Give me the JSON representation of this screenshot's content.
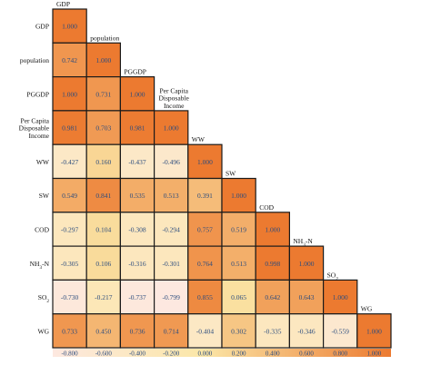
{
  "chart_data": {
    "type": "heatmap",
    "variables": [
      "GDP",
      "population",
      "PGGDP",
      "Per Capita Disposable Income",
      "WW",
      "SW",
      "COD",
      "NH3-N",
      "SO2",
      "WG"
    ],
    "row_labels": [
      "GDP",
      "population",
      "PGGDP",
      "Per Capita\nDisposable\nIncome",
      "WW",
      "SW",
      "COD",
      "NH3-N",
      "SO2",
      "WG"
    ],
    "column_labels": [
      "GDP",
      "population",
      "PGGDP",
      "Per Capita\nDisposable\nIncome",
      "WW",
      "SW",
      "COD",
      "NH3-N",
      "SO2",
      "WG"
    ],
    "matrix": [
      [
        1.0
      ],
      [
        0.742,
        1.0
      ],
      [
        1.0,
        0.731,
        1.0
      ],
      [
        0.981,
        0.703,
        0.981,
        1.0
      ],
      [
        -0.427,
        0.16,
        -0.437,
        -0.496,
        1.0
      ],
      [
        0.549,
        0.841,
        0.535,
        0.513,
        0.391,
        1.0
      ],
      [
        -0.297,
        0.104,
        -0.308,
        -0.294,
        0.757,
        0.519,
        1.0
      ],
      [
        -0.305,
        0.106,
        -0.316,
        -0.301,
        0.764,
        0.513,
        0.998,
        1.0
      ],
      [
        -0.73,
        -0.217,
        -0.737,
        -0.799,
        0.855,
        0.065,
        0.642,
        0.643,
        1.0
      ],
      [
        0.733,
        0.45,
        0.736,
        0.714,
        -0.404,
        0.302,
        -0.335,
        -0.346,
        -0.559,
        1.0
      ]
    ],
    "colorbar": {
      "ticks": [
        "-0.800",
        "-0.600",
        "-0.400",
        "-0.200",
        "0.000",
        "0.200",
        "0.400",
        "0.600",
        "0.800",
        "1.000"
      ],
      "min": -0.8,
      "max": 1.0
    },
    "colors": {
      "low": "#fde8e0",
      "mid": "#fbe7a8",
      "high": "#ec7a30"
    }
  }
}
